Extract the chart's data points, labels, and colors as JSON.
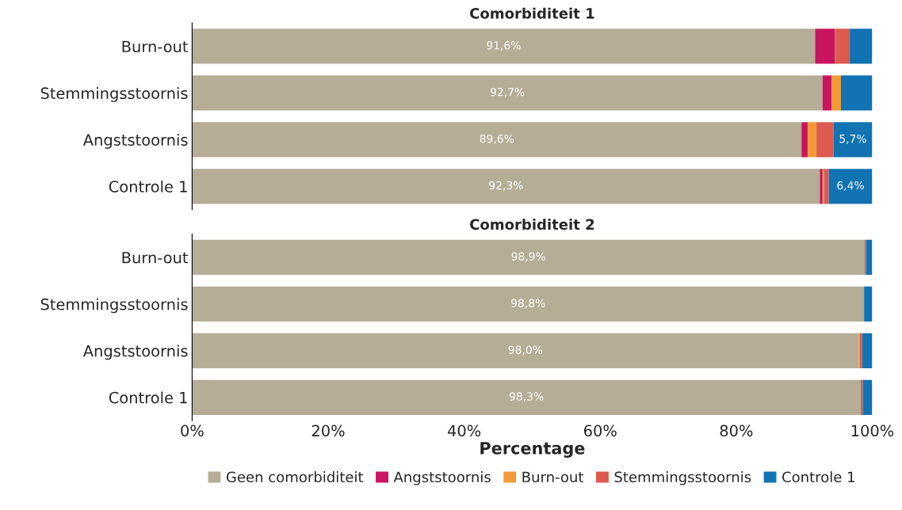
{
  "chart_data": [
    {
      "type": "bar",
      "title": "Comorbiditeit 1",
      "orientation": "horizontal",
      "stacked": true,
      "categories": [
        "Burn-out",
        "Stemmingsstoornis",
        "Angststoornis",
        "Controle 1"
      ],
      "xlim": [
        0,
        100
      ],
      "tick_labels": "y",
      "grid": false,
      "legend": false,
      "series": [
        {
          "color": "#b5ad96",
          "values": [
            91.6,
            92.7,
            89.6,
            92.3
          ],
          "value_labels": [
            "91,6%",
            "92,7%",
            "89,6%",
            "92,3%"
          ]
        },
        {
          "color": "#c8155f",
          "values": [
            2.9,
            1.3,
            0.9,
            0.4
          ]
        },
        {
          "color": "#f29a38",
          "values": [
            0,
            1.4,
            1.3,
            0.2
          ]
        },
        {
          "color": "#dc5a50",
          "values": [
            2.2,
            0,
            2.5,
            0.7
          ]
        },
        {
          "color": "#1273b2",
          "values": [
            3.3,
            4.6,
            5.7,
            6.4
          ],
          "value_labels": [
            null,
            null,
            "5,7%",
            "6,4%"
          ]
        }
      ]
    },
    {
      "type": "bar",
      "title": "Comorbiditeit 2",
      "orientation": "horizontal",
      "stacked": true,
      "categories": [
        "Burn-out",
        "Stemmingsstoornis",
        "Angststoornis",
        "Controle 1"
      ],
      "xlim": [
        0,
        100
      ],
      "xticks": [
        {
          "value": 0,
          "label": "0%"
        },
        {
          "value": 20,
          "label": "20%"
        },
        {
          "value": 40,
          "label": "40%"
        },
        {
          "value": 60,
          "label": "60%"
        },
        {
          "value": 80,
          "label": "80%"
        },
        {
          "value": 100,
          "label": "100%"
        }
      ],
      "xlabel": "Percentage",
      "grid": false,
      "legend": "bottom",
      "series": [
        {
          "name": "Geen comorbiditeit",
          "color": "#b5ad96",
          "values": [
            98.9,
            98.8,
            98.0,
            98.3
          ],
          "value_labels": [
            "98,9%",
            "98,8%",
            "98,0%",
            "98,3%"
          ]
        },
        {
          "name": "Angststoornis",
          "color": "#c8155f",
          "values": [
            0,
            0,
            0,
            0
          ]
        },
        {
          "name": "Burn-out",
          "color": "#f29a38",
          "values": [
            0,
            0,
            0.2,
            0
          ]
        },
        {
          "name": "Stemmingsstoornis",
          "color": "#dc5a50",
          "values": [
            0.2,
            0,
            0.3,
            0.3
          ]
        },
        {
          "name": "Controle 1",
          "color": "#1273b2",
          "values": [
            0.9,
            1.2,
            1.5,
            1.4
          ]
        }
      ]
    }
  ]
}
